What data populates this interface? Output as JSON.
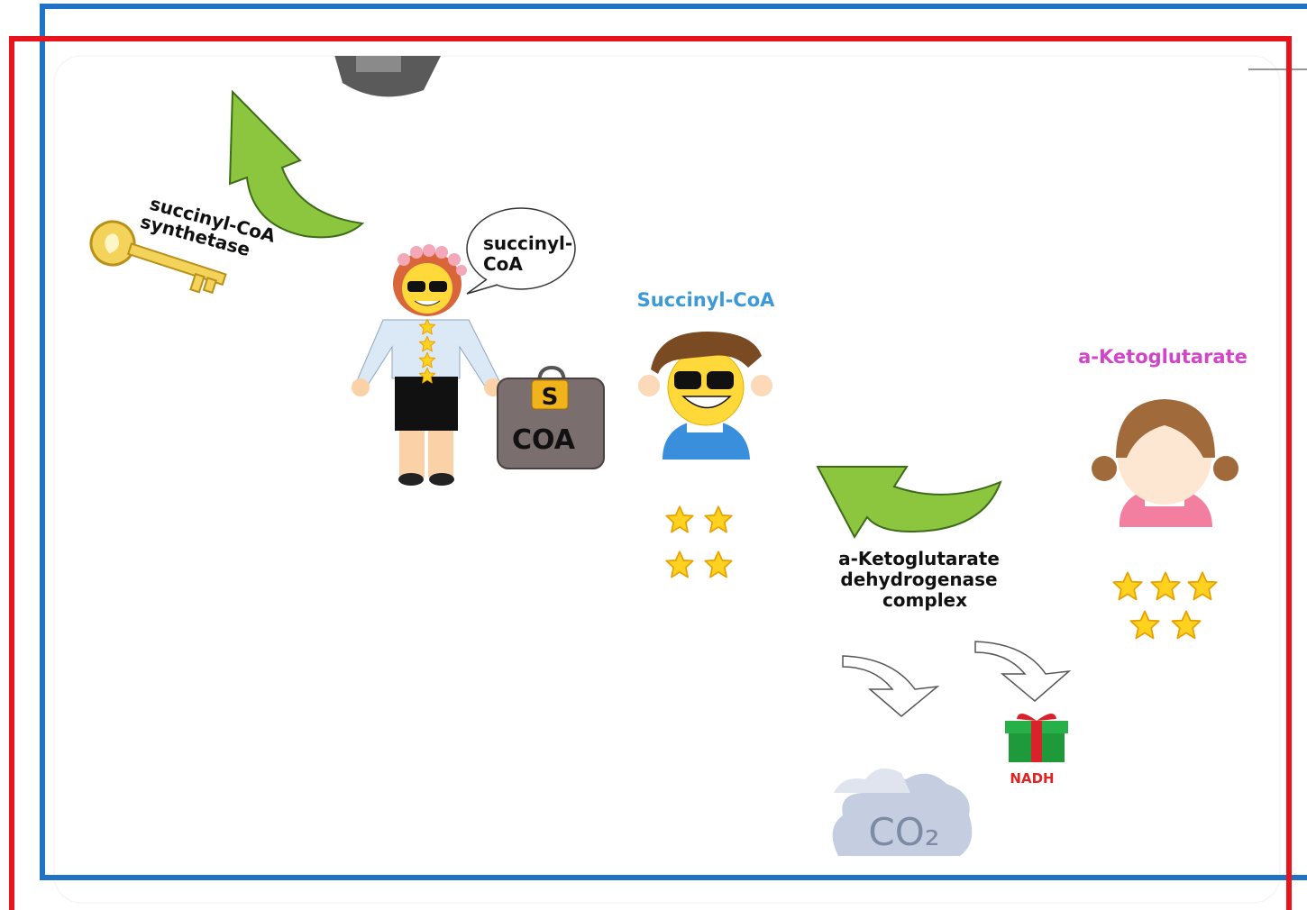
{
  "enzymes": [
    {
      "lines": [
        "succinyl-CoA",
        "synthetase"
      ]
    },
    {
      "lines": [
        "a-Ketoglutarate",
        "dehydrogenase",
        "complex"
      ]
    }
  ],
  "speech_bubble": {
    "lines": [
      "succinyl-",
      "CoA"
    ]
  },
  "suitcase": {
    "lock": "S",
    "label": "COA"
  },
  "molecules": [
    {
      "name": "Succinyl-CoA"
    },
    {
      "name": "a-Ketoglutarate"
    }
  ],
  "products": [
    {
      "name": "NADH"
    },
    {
      "name": "CO₂"
    }
  ]
}
